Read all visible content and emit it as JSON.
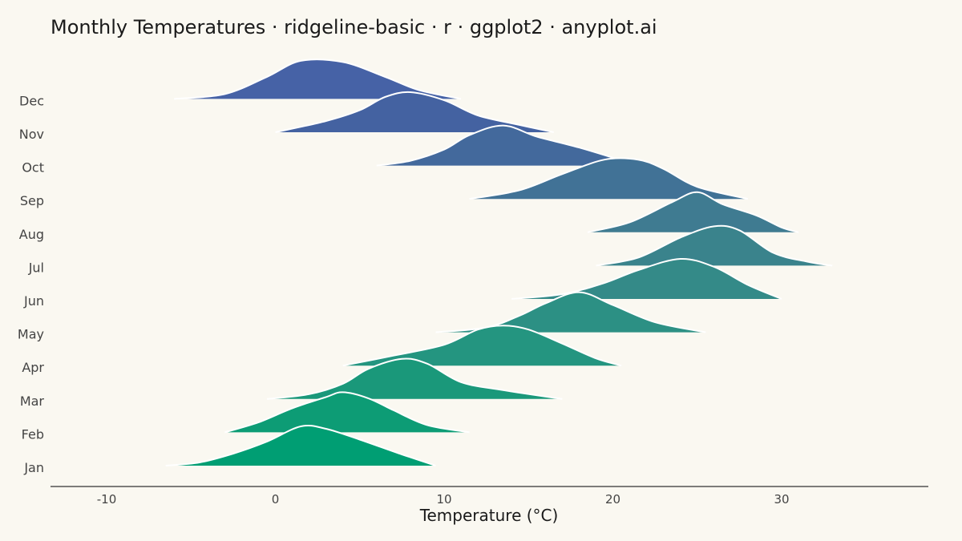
{
  "chart_data": {
    "type": "ridgeline",
    "title": "Monthly Temperatures · ridgeline-basic · r · ggplot2 · anyplot.ai",
    "xlabel": "Temperature (°C)",
    "ylabel": "",
    "xlim": [
      -13.5,
      38.5
    ],
    "xticks": [
      -10,
      0,
      10,
      20,
      30
    ],
    "grid": false,
    "legend": "none",
    "categories": [
      "Jan",
      "Feb",
      "Mar",
      "Apr",
      "May",
      "Jun",
      "Jul",
      "Aug",
      "Sep",
      "Oct",
      "Nov",
      "Dec"
    ],
    "colors": [
      "#009E73",
      "#0D9C75",
      "#1A987A",
      "#249580",
      "#2C9084",
      "#348A88",
      "#3A838C",
      "#3F7B91",
      "#417296",
      "#43699C",
      "#4462A1",
      "#4662A6"
    ],
    "series": [
      {
        "name": "Jan",
        "range": [
          -6.5,
          9.5
        ],
        "density": [
          [
            -6.5,
            0
          ],
          [
            -4.5,
            0.08
          ],
          [
            -2.5,
            0.3
          ],
          [
            -0.5,
            0.6
          ],
          [
            1.5,
            0.98
          ],
          [
            3.0,
            0.92
          ],
          [
            5.0,
            0.65
          ],
          [
            7.5,
            0.28
          ],
          [
            9.5,
            0
          ]
        ]
      },
      {
        "name": "Feb",
        "range": [
          -3.0,
          11.5
        ],
        "density": [
          [
            -3.0,
            0
          ],
          [
            -1.0,
            0.25
          ],
          [
            1.0,
            0.6
          ],
          [
            3.0,
            0.88
          ],
          [
            4.0,
            1.0
          ],
          [
            5.5,
            0.85
          ],
          [
            7.0,
            0.55
          ],
          [
            9.0,
            0.18
          ],
          [
            11.5,
            0
          ]
        ]
      },
      {
        "name": "Mar",
        "range": [
          -0.5,
          17.0
        ],
        "density": [
          [
            -0.5,
            0
          ],
          [
            2.0,
            0.12
          ],
          [
            4.0,
            0.38
          ],
          [
            5.5,
            0.75
          ],
          [
            7.5,
            1.0
          ],
          [
            9.0,
            0.88
          ],
          [
            11.0,
            0.42
          ],
          [
            13.5,
            0.22
          ],
          [
            17.0,
            0
          ]
        ]
      },
      {
        "name": "Apr",
        "range": [
          4.0,
          20.5
        ],
        "density": [
          [
            4.0,
            0
          ],
          [
            7.0,
            0.25
          ],
          [
            10.0,
            0.52
          ],
          [
            12.0,
            0.9
          ],
          [
            13.5,
            1.0
          ],
          [
            15.0,
            0.9
          ],
          [
            17.0,
            0.55
          ],
          [
            19.0,
            0.18
          ],
          [
            20.5,
            0
          ]
        ]
      },
      {
        "name": "May",
        "range": [
          9.5,
          25.5
        ],
        "density": [
          [
            9.5,
            0
          ],
          [
            12.5,
            0.12
          ],
          [
            14.5,
            0.42
          ],
          [
            16.0,
            0.72
          ],
          [
            18.0,
            1.0
          ],
          [
            20.0,
            0.68
          ],
          [
            22.5,
            0.25
          ],
          [
            25.5,
            0
          ]
        ]
      },
      {
        "name": "Jun",
        "range": [
          14.0,
          30.0
        ],
        "density": [
          [
            14.0,
            0
          ],
          [
            17.0,
            0.12
          ],
          [
            19.5,
            0.4
          ],
          [
            21.5,
            0.72
          ],
          [
            24.0,
            1.0
          ],
          [
            26.0,
            0.8
          ],
          [
            28.0,
            0.35
          ],
          [
            30.0,
            0
          ]
        ]
      },
      {
        "name": "Jul",
        "range": [
          19.0,
          33.0
        ],
        "density": [
          [
            19.0,
            0
          ],
          [
            21.5,
            0.2
          ],
          [
            24.0,
            0.7
          ],
          [
            26.0,
            0.98
          ],
          [
            27.5,
            0.88
          ],
          [
            29.5,
            0.32
          ],
          [
            31.5,
            0.1
          ],
          [
            33.0,
            0
          ]
        ]
      },
      {
        "name": "Aug",
        "range": [
          18.5,
          31.0
        ],
        "density": [
          [
            18.5,
            0
          ],
          [
            21.0,
            0.25
          ],
          [
            23.5,
            0.75
          ],
          [
            25.0,
            1.0
          ],
          [
            26.5,
            0.7
          ],
          [
            28.5,
            0.42
          ],
          [
            30.0,
            0.12
          ],
          [
            31.0,
            0
          ]
        ]
      },
      {
        "name": "Sep",
        "range": [
          11.5,
          28.0
        ],
        "density": [
          [
            11.5,
            0
          ],
          [
            14.5,
            0.22
          ],
          [
            17.0,
            0.62
          ],
          [
            19.5,
            0.98
          ],
          [
            21.5,
            0.98
          ],
          [
            23.0,
            0.75
          ],
          [
            25.0,
            0.3
          ],
          [
            28.0,
            0
          ]
        ]
      },
      {
        "name": "Oct",
        "range": [
          6.0,
          21.5
        ],
        "density": [
          [
            6.0,
            0
          ],
          [
            8.0,
            0.12
          ],
          [
            10.0,
            0.4
          ],
          [
            11.5,
            0.76
          ],
          [
            13.5,
            1.0
          ],
          [
            15.5,
            0.72
          ],
          [
            18.0,
            0.45
          ],
          [
            21.5,
            0
          ]
        ]
      },
      {
        "name": "Nov",
        "range": [
          0.0,
          16.5
        ],
        "density": [
          [
            0.0,
            0
          ],
          [
            3.0,
            0.28
          ],
          [
            5.0,
            0.55
          ],
          [
            6.5,
            0.88
          ],
          [
            8.0,
            1.0
          ],
          [
            10.0,
            0.8
          ],
          [
            12.0,
            0.42
          ],
          [
            14.5,
            0.18
          ],
          [
            16.5,
            0
          ]
        ]
      },
      {
        "name": "Dec",
        "range": [
          -6.0,
          11.0
        ],
        "density": [
          [
            -6.0,
            0
          ],
          [
            -3.0,
            0.12
          ],
          [
            -0.5,
            0.55
          ],
          [
            1.5,
            0.95
          ],
          [
            4.0,
            0.92
          ],
          [
            6.5,
            0.55
          ],
          [
            8.5,
            0.22
          ],
          [
            11.0,
            0
          ]
        ]
      }
    ]
  }
}
